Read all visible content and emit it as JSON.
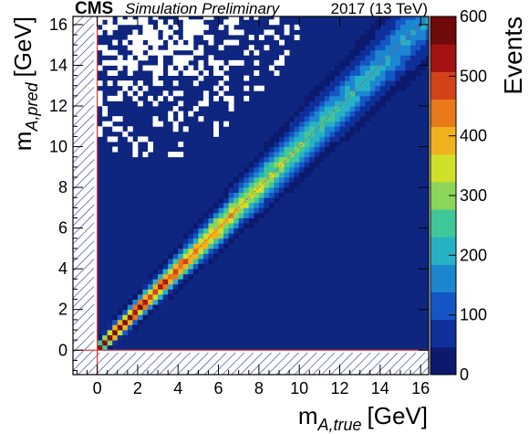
{
  "header": {
    "experiment": "CMS",
    "status": "Simulation Preliminary",
    "energy": "2017 (13 TeV)"
  },
  "chart_data": {
    "type": "heatmap",
    "xlabel": {
      "main": "m",
      "sub": "A,true",
      "unit": "[GeV]"
    },
    "ylabel": {
      "main": "m",
      "sub": "A,pred",
      "unit": "[GeV]"
    },
    "zlabel": "Events",
    "xlim": [
      -1.2,
      16.4
    ],
    "ylim": [
      -1.2,
      16.4
    ],
    "zlim": [
      0,
      600
    ],
    "x_ticks": [
      0,
      2,
      4,
      6,
      8,
      10,
      12,
      14,
      16
    ],
    "y_ticks": [
      0,
      2,
      4,
      6,
      8,
      10,
      12,
      14,
      16
    ],
    "z_ticks": [
      0,
      100,
      200,
      300,
      400,
      500,
      600
    ],
    "bin_width": 0.25,
    "diagonal_ridge": [
      {
        "m": 0.5,
        "peak_events": 560
      },
      {
        "m": 1.0,
        "peak_events": 600
      },
      {
        "m": 2.0,
        "peak_events": 560
      },
      {
        "m": 3.0,
        "peak_events": 480
      },
      {
        "m": 4.0,
        "peak_events": 440
      },
      {
        "m": 6.0,
        "peak_events": 380
      },
      {
        "m": 8.0,
        "peak_events": 300
      },
      {
        "m": 10.0,
        "peak_events": 250
      },
      {
        "m": 12.0,
        "peak_events": 190
      },
      {
        "m": 14.0,
        "peak_events": 160
      },
      {
        "m": 16.0,
        "peak_events": 150
      }
    ],
    "excluded_regions": "m_A,true < 0 and m_A,pred < 0 (hatched)",
    "reference_lines": [
      "x = 0",
      "y = 0",
      "y = x"
    ],
    "palette": [
      "#0c1a6e",
      "#0f2f9a",
      "#1456c4",
      "#1d86d0",
      "#27b2c4",
      "#3fc79a",
      "#8bd55a",
      "#cfe02a",
      "#f0b21e",
      "#e9791a",
      "#d4421a",
      "#a51212",
      "#6e0a0a"
    ],
    "grid": false,
    "legend": "colorbar-right"
  }
}
